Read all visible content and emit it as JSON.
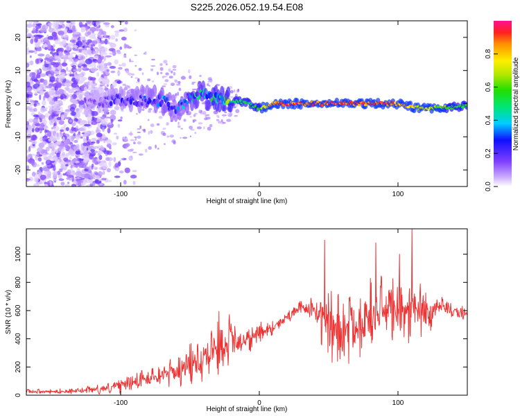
{
  "chart_data": [
    {
      "type": "heatmap",
      "title": "S225.2026.052.19.54.E08",
      "xlabel": "Height of straight line (km)",
      "ylabel": "Frequency (Hz)",
      "xlim": [
        -168,
        150
      ],
      "ylim": [
        -25,
        25
      ],
      "xticks": [
        -100,
        0,
        100
      ],
      "yticks": [
        -20,
        -10,
        0,
        10,
        20
      ],
      "colorbar": {
        "label": "Normalized spectral amplitude",
        "range": [
          0,
          1
        ],
        "ticks": [
          "0.0",
          "0.2",
          "0.4",
          "0.6",
          "0.8"
        ]
      },
      "ridge": {
        "description_points_x": [
          -120,
          -100,
          -80,
          -70,
          -60,
          -50,
          -40,
          -30,
          -20,
          -10,
          0,
          10,
          20,
          40,
          60,
          80,
          100,
          110,
          120,
          140,
          150
        ],
        "description_points_y": [
          0,
          1,
          1,
          1,
          -2,
          2,
          3,
          1,
          0.5,
          0.5,
          -1.5,
          0,
          0,
          0,
          0,
          0,
          0,
          -1,
          -1.5,
          -1,
          -0.5
        ],
        "amplitude": [
          0.12,
          0.2,
          0.25,
          0.3,
          0.25,
          0.35,
          0.4,
          0.45,
          0.5,
          0.55,
          0.6,
          0.9,
          0.95,
          0.95,
          0.95,
          0.95,
          0.9,
          0.8,
          0.75,
          0.6,
          0.55
        ]
      }
    },
    {
      "type": "line",
      "xlabel": "Height of straight line (km)",
      "ylabel": "SNR (10 * v/v)",
      "xlim": [
        -168,
        150
      ],
      "ylim": [
        0,
        1180
      ],
      "xticks": [
        -100,
        0,
        100
      ],
      "yticks": [
        0,
        200,
        400,
        600,
        800,
        1000
      ],
      "color": "#ee3333",
      "envelope": {
        "x": [
          -168,
          -150,
          -130,
          -110,
          -90,
          -70,
          -60,
          -50,
          -40,
          -30,
          -20,
          -10,
          0,
          10,
          20,
          30,
          40,
          50,
          60,
          70,
          80,
          90,
          100,
          110,
          120,
          130,
          140,
          150
        ],
        "mean": [
          25,
          25,
          30,
          50,
          100,
          150,
          170,
          220,
          300,
          350,
          380,
          400,
          440,
          480,
          560,
          620,
          600,
          500,
          450,
          500,
          550,
          600,
          600,
          580,
          600,
          620,
          600,
          580
        ],
        "spread": [
          20,
          20,
          25,
          50,
          80,
          100,
          120,
          180,
          250,
          280,
          220,
          150,
          100,
          70,
          60,
          60,
          100,
          350,
          350,
          300,
          300,
          280,
          300,
          300,
          250,
          100,
          80,
          60
        ],
        "peaks": [
          {
            "x": 110,
            "y": 1180
          },
          {
            "x": 84,
            "y": 1080
          },
          {
            "x": 47,
            "y": 1100
          },
          {
            "x": 101,
            "y": 1000
          }
        ]
      }
    }
  ]
}
